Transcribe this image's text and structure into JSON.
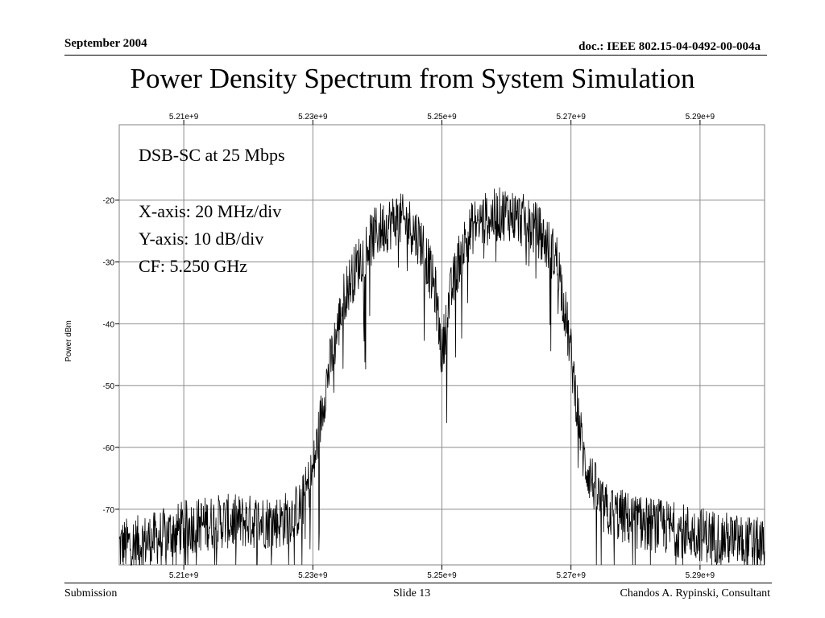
{
  "header": {
    "date": "September 2004",
    "doc": "doc.: IEEE 802.15-04-0492-00-004a"
  },
  "slide_title": "Power Density Spectrum  from System Simulation",
  "annotations": {
    "line1": "DSB-SC at 25 Mbps",
    "line2": "X-axis: 20 MHz/div",
    "line3": "Y-axis: 10 dB/div",
    "line4": "CF:  5.250 GHz"
  },
  "footer": {
    "left": "Submission",
    "center": "Slide 13",
    "right": "Chandos A. Rypinski, Consultant"
  },
  "chart_data": {
    "type": "line",
    "ylabel": "Power dBm",
    "xlabel": "",
    "x_ticks": [
      "5.21e+9",
      "5.23e+9",
      "5.25e+9",
      "5.27e+9",
      "5.29e+9"
    ],
    "x_tick_values": [
      5210000000.0,
      5230000000.0,
      5250000000.0,
      5270000000.0,
      5290000000.0
    ],
    "y_ticks": [
      "-20",
      "-30",
      "-40",
      "-50",
      "-60",
      "-70"
    ],
    "y_tick_values": [
      -20,
      -30,
      -40,
      -50,
      -60,
      -70
    ],
    "xlim": [
      5200000000.0,
      5300000000.0
    ],
    "ylim": [
      -79,
      -7.8
    ],
    "grid": true,
    "series": [
      {
        "color": "#000000",
        "envelope_x_ghz": [
          5.2,
          5.205,
          5.21,
          5.215,
          5.22,
          5.225,
          5.228,
          5.23,
          5.232,
          5.235,
          5.238,
          5.24,
          5.243,
          5.245,
          5.247,
          5.249,
          5.25,
          5.251,
          5.253,
          5.255,
          5.257,
          5.26,
          5.262,
          5.265,
          5.268,
          5.27,
          5.272,
          5.275,
          5.28,
          5.285,
          5.29,
          5.295,
          5.3
        ],
        "envelope_y_dbm": [
          -76,
          -75,
          -73,
          -72,
          -72,
          -72,
          -70,
          -64,
          -50,
          -35,
          -28,
          -25,
          -23,
          -24,
          -27,
          -35,
          -45,
          -37,
          -28,
          -24,
          -23,
          -22,
          -23,
          -25,
          -30,
          -45,
          -62,
          -70,
          -72,
          -73,
          -74,
          -75,
          -76
        ]
      }
    ]
  }
}
